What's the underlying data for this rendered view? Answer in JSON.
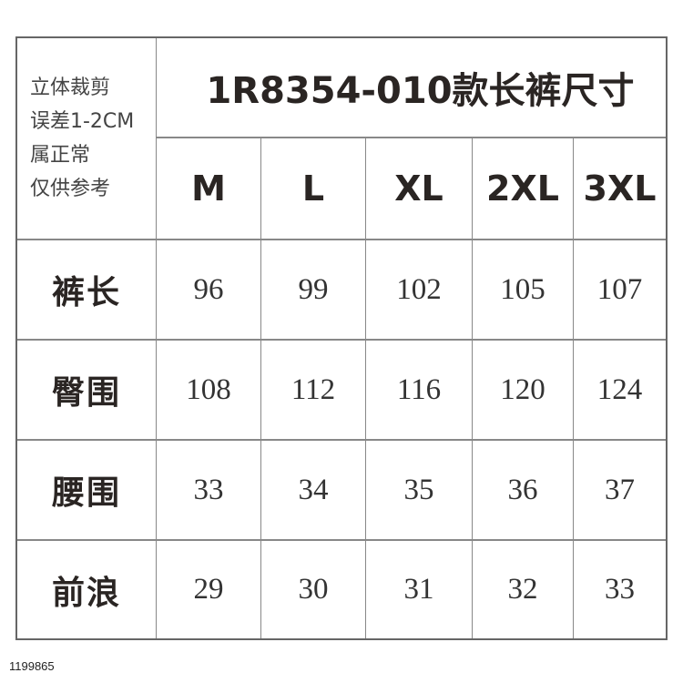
{
  "note_lines": [
    "立体裁剪",
    "误差1-2CM",
    "属正常",
    "仅供参考"
  ],
  "title": "1R8354-010款长裤尺寸",
  "sizes": [
    "M",
    "L",
    "XL",
    "2XL",
    "3XL"
  ],
  "rows": [
    {
      "label": "裤长",
      "values": [
        "96",
        "99",
        "102",
        "105",
        "107"
      ]
    },
    {
      "label": "臀围",
      "values": [
        "108",
        "112",
        "116",
        "120",
        "124"
      ]
    },
    {
      "label": "腰围",
      "values": [
        "33",
        "34",
        "35",
        "36",
        "37"
      ]
    },
    {
      "label": "前浪",
      "values": [
        "29",
        "30",
        "31",
        "32",
        "33"
      ]
    }
  ],
  "footer_code": "1199865"
}
